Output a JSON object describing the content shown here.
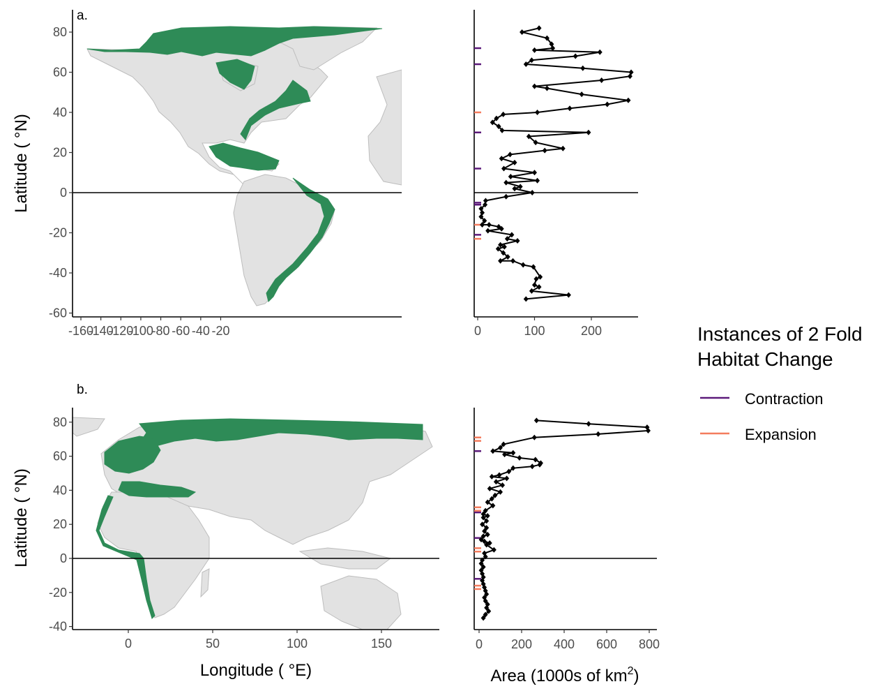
{
  "legend": {
    "title_line1": "Instances of 2 Fold",
    "title_line2": " Habitat Change",
    "items": [
      {
        "label": "Contraction",
        "color": "#5c1a7a"
      },
      {
        "label": "Expansion",
        "color": "#f47c5e"
      }
    ]
  },
  "colors": {
    "habitat": "#2e8b57",
    "land": "#e2e2e2",
    "border": "#bdbdbd"
  },
  "chart_data": [
    {
      "panel": "a.",
      "type": "map",
      "ylabel": "Latitude ( °N)",
      "xticks": [
        "-160",
        "-140",
        "-120",
        "-100",
        "-80",
        "-60",
        "-40",
        "-20"
      ],
      "yticks": [
        "80",
        "60",
        "40",
        "20",
        "0",
        "-20",
        "-40",
        "-60"
      ]
    },
    {
      "panel": "a.",
      "type": "line",
      "xticks": [
        "0",
        "100",
        "200"
      ],
      "xlim": [
        0,
        280
      ],
      "ylim": [
        -62,
        92
      ],
      "points": [
        [
          108,
          82
        ],
        [
          78,
          80
        ],
        [
          122,
          77
        ],
        [
          130,
          74
        ],
        [
          132,
          72
        ],
        [
          100,
          71
        ],
        [
          215,
          70
        ],
        [
          172,
          68
        ],
        [
          95,
          66
        ],
        [
          85,
          64
        ],
        [
          185,
          62
        ],
        [
          270,
          60
        ],
        [
          268,
          58
        ],
        [
          218,
          56
        ],
        [
          100,
          53
        ],
        [
          122,
          52
        ],
        [
          183,
          49
        ],
        [
          265,
          46
        ],
        [
          228,
          44
        ],
        [
          162,
          42
        ],
        [
          105,
          40
        ],
        [
          45,
          39
        ],
        [
          33,
          37
        ],
        [
          26,
          35
        ],
        [
          37,
          33
        ],
        [
          43,
          31
        ],
        [
          195,
          30
        ],
        [
          90,
          28
        ],
        [
          102,
          25
        ],
        [
          150,
          22
        ],
        [
          118,
          21
        ],
        [
          57,
          19
        ],
        [
          42,
          17
        ],
        [
          65,
          15
        ],
        [
          46,
          12
        ],
        [
          100,
          10
        ],
        [
          58,
          8
        ],
        [
          105,
          6
        ],
        [
          50,
          5
        ],
        [
          75,
          3
        ],
        [
          65,
          2
        ],
        [
          96,
          0
        ],
        [
          50,
          -2
        ],
        [
          14,
          -4
        ],
        [
          13,
          -6
        ],
        [
          6,
          -8
        ],
        [
          8,
          -10
        ],
        [
          6,
          -12
        ],
        [
          12,
          -14
        ],
        [
          8,
          -16
        ],
        [
          20,
          -16
        ],
        [
          37,
          -17
        ],
        [
          42,
          -18
        ],
        [
          18,
          -19
        ],
        [
          60,
          -21
        ],
        [
          52,
          -23
        ],
        [
          70,
          -24
        ],
        [
          40,
          -26
        ],
        [
          47,
          -27
        ],
        [
          36,
          -28
        ],
        [
          45,
          -30
        ],
        [
          53,
          -32
        ],
        [
          40,
          -34
        ],
        [
          62,
          -34
        ],
        [
          80,
          -36
        ],
        [
          98,
          -37
        ],
        [
          110,
          -42
        ],
        [
          103,
          -43
        ],
        [
          100,
          -46
        ],
        [
          108,
          -47
        ],
        [
          95,
          -49
        ],
        [
          160,
          -51
        ],
        [
          85,
          -53
        ]
      ],
      "contraction_lat": [
        72,
        64,
        30,
        12,
        -5,
        -6,
        -21
      ],
      "expansion_lat": [
        40,
        -16,
        -23
      ]
    },
    {
      "panel": "b.",
      "type": "map",
      "ylabel": "Latitude ( °N)",
      "xlabel": "Longitude ( °E)",
      "xticks": [
        "0",
        "50",
        "100",
        "150"
      ],
      "yticks": [
        "80",
        "60",
        "40",
        "20",
        "0",
        "-20",
        "-40"
      ]
    },
    {
      "panel": "b.",
      "type": "line",
      "xlabel": "Area (1000s of km",
      "xlabel_sup": "2",
      "xlabel_end": ")",
      "xticks": [
        "0",
        "200",
        "400",
        "600",
        "800"
      ],
      "xlim": [
        -10,
        840
      ],
      "ylim": [
        -42,
        92
      ],
      "points": [
        [
          270,
          81
        ],
        [
          515,
          79
        ],
        [
          790,
          77
        ],
        [
          795,
          75
        ],
        [
          560,
          73
        ],
        [
          260,
          71
        ],
        [
          115,
          67
        ],
        [
          100,
          65
        ],
        [
          65,
          63
        ],
        [
          160,
          62
        ],
        [
          120,
          61
        ],
        [
          190,
          59
        ],
        [
          265,
          58
        ],
        [
          290,
          56
        ],
        [
          285,
          55
        ],
        [
          250,
          54
        ],
        [
          160,
          53
        ],
        [
          140,
          51
        ],
        [
          95,
          49
        ],
        [
          60,
          48
        ],
        [
          130,
          47
        ],
        [
          80,
          45
        ],
        [
          110,
          43
        ],
        [
          50,
          41
        ],
        [
          100,
          39
        ],
        [
          75,
          37
        ],
        [
          60,
          35
        ],
        [
          40,
          33
        ],
        [
          65,
          31
        ],
        [
          30,
          28
        ],
        [
          20,
          26
        ],
        [
          40,
          25
        ],
        [
          20,
          24
        ],
        [
          35,
          22
        ],
        [
          15,
          20
        ],
        [
          35,
          18
        ],
        [
          25,
          16
        ],
        [
          40,
          14
        ],
        [
          20,
          13
        ],
        [
          10,
          11
        ],
        [
          25,
          10
        ],
        [
          50,
          9
        ],
        [
          35,
          8
        ],
        [
          70,
          5
        ],
        [
          25,
          3
        ],
        [
          30,
          1
        ],
        [
          15,
          -1
        ],
        [
          10,
          -3
        ],
        [
          20,
          -5
        ],
        [
          10,
          -7
        ],
        [
          15,
          -9
        ],
        [
          20,
          -11
        ],
        [
          15,
          -13
        ],
        [
          20,
          -15
        ],
        [
          25,
          -17
        ],
        [
          30,
          -19
        ],
        [
          35,
          -21
        ],
        [
          25,
          -23
        ],
        [
          30,
          -25
        ],
        [
          40,
          -27
        ],
        [
          35,
          -29
        ],
        [
          45,
          -31
        ],
        [
          30,
          -33
        ],
        [
          20,
          -35
        ]
      ],
      "contraction_lat": [
        63,
        27,
        12,
        -12
      ],
      "expansion_lat": [
        71,
        69,
        30,
        28,
        6,
        4,
        -16,
        -18
      ]
    }
  ]
}
